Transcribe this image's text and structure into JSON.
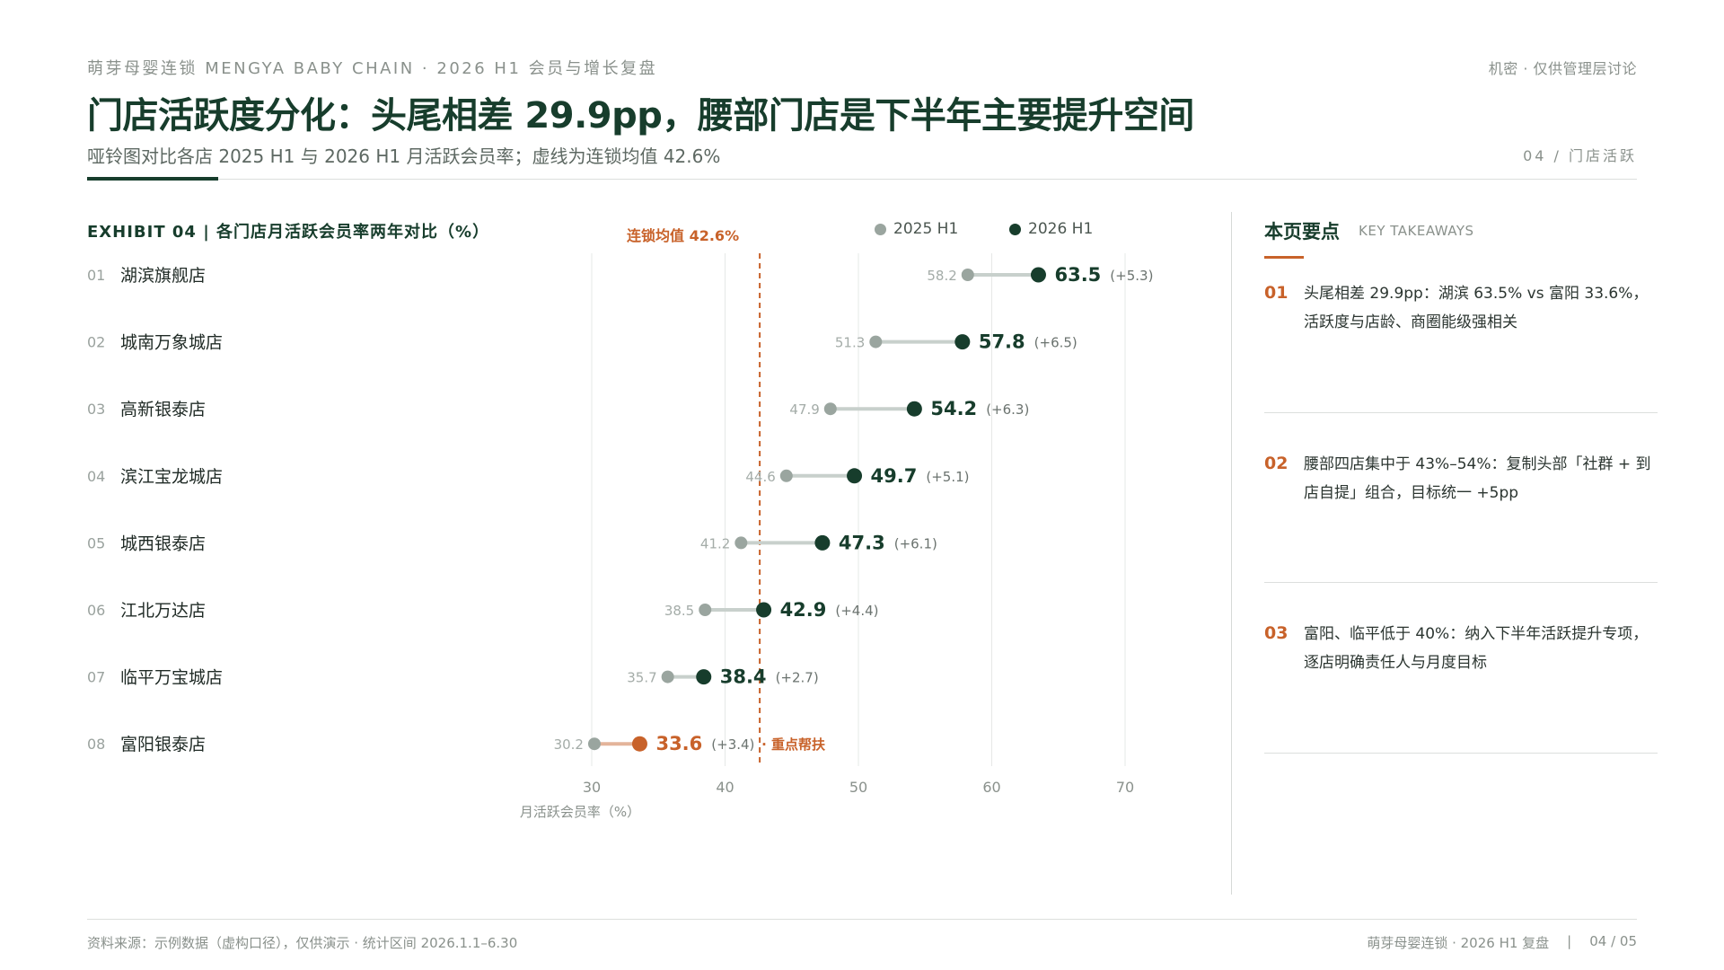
{
  "header": {
    "topline": "萌芽母婴连锁 MENGYA BABY CHAIN · 2026 H1 会员与增长复盘",
    "confidential": "机密 · 仅供管理层讨论",
    "title": "门店活跃度分化：头尾相差 29.9pp，腰部门店是下半年主要提升空间",
    "subtitle": "哑铃图对比各店 2025 H1 与 2026 H1 月活跃会员率；虚线为连锁均值 42.6%",
    "page_tag": "04 / 门店活跃"
  },
  "exhibit": {
    "title": "EXHIBIT 04 | 各门店月活跃会员率两年对比（%）",
    "legend": [
      {
        "label": "2025 H1",
        "color": "#9aa59f"
      },
      {
        "label": "2026 H1",
        "color": "#173d2c"
      }
    ]
  },
  "chart_data": {
    "type": "dumbbell",
    "x_label": "月活跃会员率（%）",
    "x_ticks": [
      30,
      40,
      50,
      60,
      70
    ],
    "x_range": [
      30,
      70
    ],
    "average": {
      "label": "连锁均值 42.6%",
      "value": 42.6
    },
    "series": [
      {
        "name": "2025 H1",
        "color": "#9aa59f"
      },
      {
        "name": "2026 H1",
        "color": "#173d2c"
      }
    ],
    "highlight_color": "#c8622a",
    "rows": [
      {
        "index": "01",
        "store": "湖滨旗舰店",
        "v2025": "58.2",
        "v2026": "63.5",
        "delta": "(+5.3)"
      },
      {
        "index": "02",
        "store": "城南万象城店",
        "v2025": "51.3",
        "v2026": "57.8",
        "delta": "(+6.5)"
      },
      {
        "index": "03",
        "store": "高新银泰店",
        "v2025": "47.9",
        "v2026": "54.2",
        "delta": "(+6.3)"
      },
      {
        "index": "04",
        "store": "滨江宝龙城店",
        "v2025": "44.6",
        "v2026": "49.7",
        "delta": "(+5.1)"
      },
      {
        "index": "05",
        "store": "城西银泰店",
        "v2025": "41.2",
        "v2026": "47.3",
        "delta": "(+6.1)"
      },
      {
        "index": "06",
        "store": "江北万达店",
        "v2025": "38.5",
        "v2026": "42.9",
        "delta": "(+4.4)"
      },
      {
        "index": "07",
        "store": "临平万宝城店",
        "v2025": "35.7",
        "v2026": "38.4",
        "delta": "(+2.7)"
      },
      {
        "index": "08",
        "store": "富阳银泰店",
        "v2025": "30.2",
        "v2026": "33.6",
        "delta": "(+3.4)",
        "highlight": true,
        "note": "· 重点帮扶"
      }
    ]
  },
  "takeaways": {
    "title": "本页要点",
    "subtitle": "KEY TAKEAWAYS",
    "items": [
      {
        "num": "01",
        "text": "头尾相差 29.9pp：湖滨 63.5% vs 富阳 33.6%，活跃度与店龄、商圈能级强相关"
      },
      {
        "num": "02",
        "text": "腰部四店集中于 43%–54%：复制头部「社群 + 到店自提」组合，目标统一 +5pp"
      },
      {
        "num": "03",
        "text": "富阳、临平低于 40%：纳入下半年活跃提升专项，逐店明确责任人与月度目标"
      }
    ]
  },
  "footer": {
    "source": "资料来源：示例数据（虚构口径），仅供演示 · 统计区间 2026.1.1–6.30",
    "brand": "萌芽母婴连锁 · 2026 H1 复盘",
    "separator": "|",
    "page": "04 / 05"
  }
}
